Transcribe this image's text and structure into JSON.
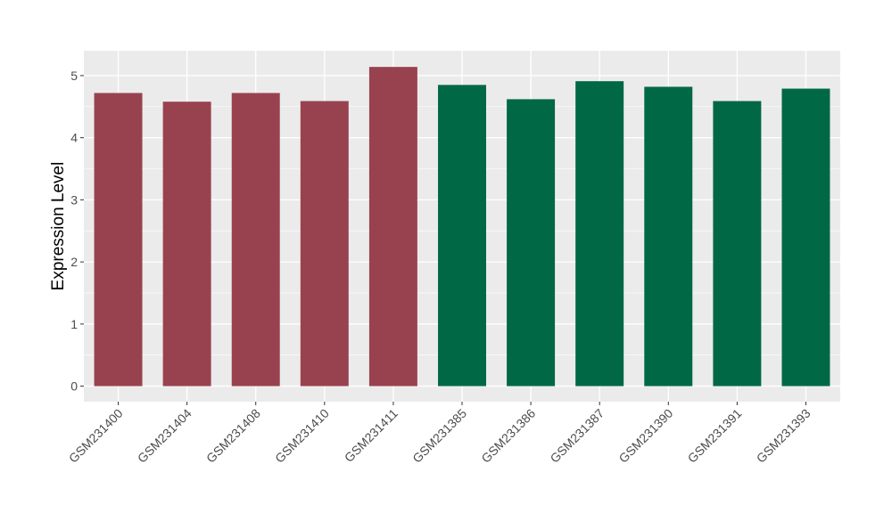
{
  "chart_data": {
    "type": "bar",
    "title": "",
    "xlabel": "",
    "ylabel": "Expression Level",
    "categories": [
      "GSM231400",
      "GSM231404",
      "GSM231408",
      "GSM231410",
      "GSM231411",
      "GSM231385",
      "GSM231386",
      "GSM231387",
      "GSM231390",
      "GSM231391",
      "GSM231393"
    ],
    "values": [
      4.72,
      4.58,
      4.72,
      4.59,
      5.14,
      4.85,
      4.62,
      4.91,
      4.82,
      4.59,
      4.79
    ],
    "bar_colors": [
      "#99424f",
      "#99424f",
      "#99424f",
      "#99424f",
      "#99424f",
      "#006845",
      "#006845",
      "#006845",
      "#006845",
      "#006845",
      "#006845"
    ],
    "yticks": [
      0,
      1,
      2,
      3,
      4,
      5
    ],
    "ylim": [
      -0.25,
      5.4
    ],
    "grid": true,
    "panel_background": "#ebebeb",
    "grid_color": "#ffffff"
  }
}
